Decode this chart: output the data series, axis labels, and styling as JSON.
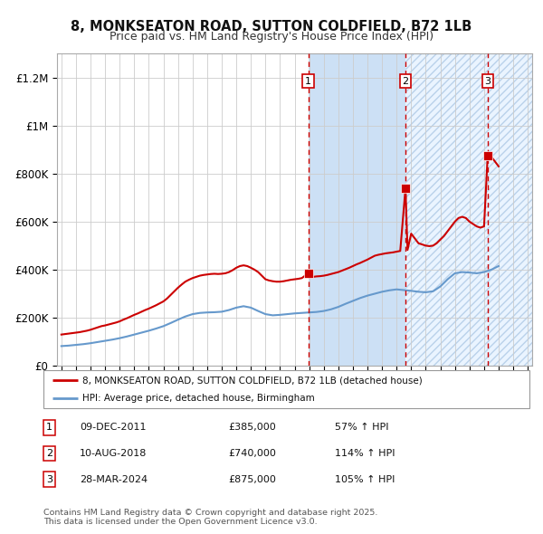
{
  "title": "8, MONKSEATON ROAD, SUTTON COLDFIELD, B72 1LB",
  "subtitle": "Price paid vs. HM Land Registry's House Price Index (HPI)",
  "bg_color": "#ffffff",
  "plot_bg_color": "#ffffff",
  "grid_color": "#cccccc",
  "ylim": [
    0,
    1300000
  ],
  "xlim_start": 1994.7,
  "xlim_end": 2027.3,
  "yticks": [
    0,
    200000,
    400000,
    600000,
    800000,
    1000000,
    1200000
  ],
  "ytick_labels": [
    "£0",
    "£200K",
    "£400K",
    "£600K",
    "£800K",
    "£1M",
    "£1.2M"
  ],
  "xticks": [
    1995,
    1996,
    1997,
    1998,
    1999,
    2000,
    2001,
    2002,
    2003,
    2004,
    2005,
    2006,
    2007,
    2008,
    2009,
    2010,
    2011,
    2012,
    2013,
    2014,
    2015,
    2016,
    2017,
    2018,
    2019,
    2020,
    2021,
    2022,
    2023,
    2024,
    2025,
    2026,
    2027
  ],
  "red_line_color": "#cc0000",
  "blue_line_color": "#6699cc",
  "shade_color": "#cce0f5",
  "hatch_facecolor": "#ddeeff",
  "hatch_edgecolor": "#99bbdd",
  "marker_color": "#cc0000",
  "sale_points": [
    {
      "year": 2011.94,
      "price": 385000,
      "label": "1"
    },
    {
      "year": 2018.61,
      "price": 740000,
      "label": "2"
    },
    {
      "year": 2024.25,
      "price": 875000,
      "label": "3"
    }
  ],
  "vline_color": "#cc0000",
  "legend_entries": [
    "8, MONKSEATON ROAD, SUTTON COLDFIELD, B72 1LB (detached house)",
    "HPI: Average price, detached house, Birmingham"
  ],
  "table_rows": [
    {
      "num": "1",
      "date": "09-DEC-2011",
      "price": "£385,000",
      "change": "57% ↑ HPI"
    },
    {
      "num": "2",
      "date": "10-AUG-2018",
      "price": "£740,000",
      "change": "114% ↑ HPI"
    },
    {
      "num": "3",
      "date": "28-MAR-2024",
      "price": "£875,000",
      "change": "105% ↑ HPI"
    }
  ],
  "footnote": "Contains HM Land Registry data © Crown copyright and database right 2025.\nThis data is licensed under the Open Government Licence v3.0.",
  "red_line_data_x": [
    1995.0,
    1995.25,
    1995.5,
    1995.75,
    1996.0,
    1996.25,
    1996.5,
    1996.75,
    1997.0,
    1997.25,
    1997.5,
    1997.75,
    1998.0,
    1998.25,
    1998.5,
    1998.75,
    1999.0,
    1999.25,
    1999.5,
    1999.75,
    2000.0,
    2000.25,
    2000.5,
    2000.75,
    2001.0,
    2001.25,
    2001.5,
    2001.75,
    2002.0,
    2002.25,
    2002.5,
    2002.75,
    2003.0,
    2003.25,
    2003.5,
    2003.75,
    2004.0,
    2004.25,
    2004.5,
    2004.75,
    2005.0,
    2005.25,
    2005.5,
    2005.75,
    2006.0,
    2006.25,
    2006.5,
    2006.75,
    2007.0,
    2007.25,
    2007.5,
    2007.75,
    2008.0,
    2008.25,
    2008.5,
    2008.75,
    2009.0,
    2009.25,
    2009.5,
    2009.75,
    2010.0,
    2010.25,
    2010.5,
    2010.75,
    2011.0,
    2011.25,
    2011.5,
    2011.94,
    2012.0,
    2012.25,
    2012.5,
    2012.75,
    2013.0,
    2013.25,
    2013.5,
    2013.75,
    2014.0,
    2014.25,
    2014.5,
    2014.75,
    2015.0,
    2015.25,
    2015.5,
    2015.75,
    2016.0,
    2016.25,
    2016.5,
    2016.75,
    2017.0,
    2017.25,
    2017.5,
    2017.75,
    2018.0,
    2018.25,
    2018.61,
    2018.75,
    2019.0,
    2019.25,
    2019.5,
    2019.75,
    2020.0,
    2020.25,
    2020.5,
    2020.75,
    2021.0,
    2021.25,
    2021.5,
    2021.75,
    2022.0,
    2022.25,
    2022.5,
    2022.75,
    2023.0,
    2023.25,
    2023.5,
    2023.75,
    2024.0,
    2024.25,
    2024.5,
    2024.75,
    2025.0
  ],
  "red_line_data_y": [
    130000,
    132000,
    134000,
    136000,
    138000,
    140000,
    143000,
    146000,
    150000,
    155000,
    160000,
    165000,
    168000,
    172000,
    176000,
    180000,
    185000,
    192000,
    198000,
    205000,
    212000,
    218000,
    225000,
    232000,
    238000,
    245000,
    252000,
    260000,
    268000,
    280000,
    295000,
    310000,
    325000,
    338000,
    350000,
    358000,
    365000,
    370000,
    375000,
    378000,
    380000,
    382000,
    383000,
    382000,
    383000,
    385000,
    390000,
    398000,
    408000,
    415000,
    418000,
    415000,
    408000,
    400000,
    390000,
    375000,
    360000,
    355000,
    352000,
    350000,
    350000,
    352000,
    355000,
    358000,
    360000,
    362000,
    365000,
    385000,
    368000,
    370000,
    372000,
    373000,
    375000,
    378000,
    382000,
    386000,
    390000,
    396000,
    402000,
    408000,
    415000,
    422000,
    428000,
    435000,
    442000,
    450000,
    458000,
    462000,
    465000,
    468000,
    470000,
    472000,
    475000,
    478000,
    740000,
    482000,
    550000,
    530000,
    510000,
    505000,
    500000,
    498000,
    500000,
    510000,
    525000,
    540000,
    560000,
    580000,
    600000,
    615000,
    620000,
    615000,
    600000,
    590000,
    580000,
    575000,
    580000,
    875000,
    870000,
    850000,
    830000
  ],
  "blue_line_data_x": [
    1995.0,
    1995.5,
    1996.0,
    1996.5,
    1997.0,
    1997.5,
    1998.0,
    1998.5,
    1999.0,
    1999.5,
    2000.0,
    2000.5,
    2001.0,
    2001.5,
    2002.0,
    2002.5,
    2003.0,
    2003.5,
    2004.0,
    2004.5,
    2005.0,
    2005.5,
    2006.0,
    2006.5,
    2007.0,
    2007.5,
    2008.0,
    2008.5,
    2009.0,
    2009.5,
    2010.0,
    2010.5,
    2011.0,
    2011.5,
    2012.0,
    2012.5,
    2013.0,
    2013.5,
    2014.0,
    2014.5,
    2015.0,
    2015.5,
    2016.0,
    2016.5,
    2017.0,
    2017.5,
    2018.0,
    2018.5,
    2019.0,
    2019.5,
    2020.0,
    2020.5,
    2021.0,
    2021.5,
    2022.0,
    2022.5,
    2023.0,
    2023.5,
    2024.0,
    2024.5,
    2025.0
  ],
  "blue_line_data_y": [
    82000,
    84000,
    87000,
    90000,
    94000,
    99000,
    104000,
    109000,
    115000,
    122000,
    130000,
    138000,
    146000,
    155000,
    165000,
    178000,
    192000,
    205000,
    215000,
    220000,
    222000,
    223000,
    225000,
    232000,
    242000,
    248000,
    242000,
    228000,
    215000,
    210000,
    212000,
    215000,
    218000,
    220000,
    222000,
    224000,
    228000,
    235000,
    245000,
    258000,
    270000,
    282000,
    292000,
    300000,
    308000,
    314000,
    318000,
    315000,
    312000,
    308000,
    306000,
    310000,
    330000,
    360000,
    385000,
    390000,
    388000,
    385000,
    390000,
    400000,
    415000
  ],
  "shade_region1_x1": 2011.94,
  "shade_region1_x2": 2018.61,
  "shade_region2_x1": 2018.61,
  "shade_region2_x2": 2027.3,
  "dashed_vlines": [
    2011.94,
    2018.61,
    2024.25
  ]
}
